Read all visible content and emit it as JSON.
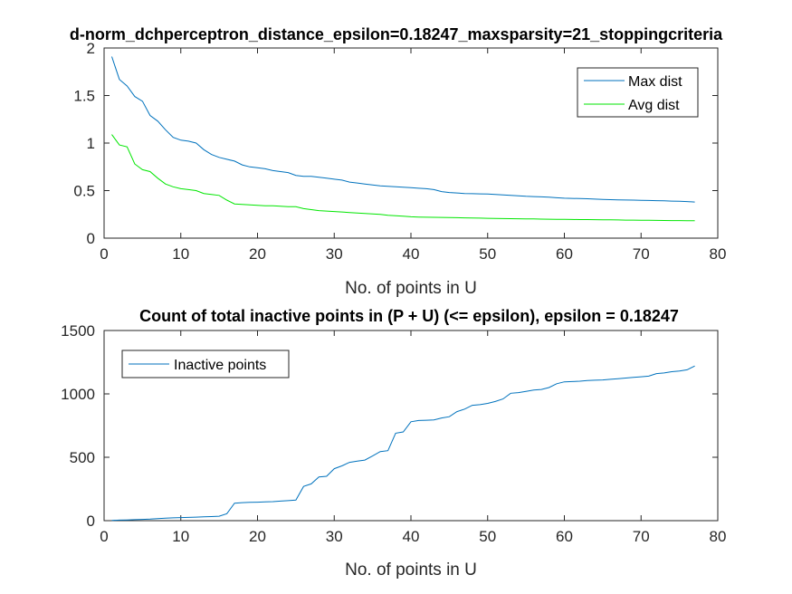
{
  "chart_data": [
    {
      "type": "line",
      "title": "d-norm_dchperceptron_distance_epsilon=0.18247_maxsparsity=21_stoppingcriteria",
      "xlabel": "No. of points in U",
      "ylabel": "",
      "xlim": [
        0,
        80
      ],
      "ylim": [
        0,
        2
      ],
      "xticks": [
        "0",
        "10",
        "20",
        "30",
        "40",
        "50",
        "60",
        "70",
        "80"
      ],
      "yticks": [
        "0",
        "0.5",
        "1",
        "1.5",
        "2"
      ],
      "legend_position": "top-right",
      "grid": false,
      "x": [
        1,
        2,
        3,
        4,
        5,
        6,
        7,
        8,
        9,
        10,
        11,
        12,
        13,
        14,
        15,
        16,
        17,
        18,
        19,
        20,
        21,
        22,
        23,
        24,
        25,
        26,
        27,
        28,
        29,
        30,
        31,
        32,
        33,
        34,
        35,
        36,
        37,
        38,
        39,
        40,
        41,
        42,
        43,
        44,
        45,
        46,
        47,
        48,
        49,
        50,
        51,
        52,
        53,
        54,
        55,
        56,
        57,
        58,
        59,
        60,
        61,
        62,
        63,
        64,
        65,
        66,
        67,
        68,
        69,
        70,
        71,
        72,
        73,
        74,
        75,
        76,
        77
      ],
      "series": [
        {
          "name": "Max dist",
          "color": "#0072BD",
          "values": [
            1.91,
            1.67,
            1.6,
            1.49,
            1.44,
            1.29,
            1.23,
            1.14,
            1.06,
            1.03,
            1.02,
            1.0,
            0.93,
            0.88,
            0.85,
            0.83,
            0.81,
            0.77,
            0.75,
            0.74,
            0.73,
            0.71,
            0.7,
            0.69,
            0.66,
            0.65,
            0.65,
            0.64,
            0.63,
            0.62,
            0.61,
            0.59,
            0.58,
            0.57,
            0.56,
            0.55,
            0.545,
            0.54,
            0.535,
            0.53,
            0.525,
            0.52,
            0.51,
            0.49,
            0.48,
            0.475,
            0.47,
            0.468,
            0.466,
            0.464,
            0.46,
            0.455,
            0.45,
            0.445,
            0.44,
            0.437,
            0.434,
            0.43,
            0.425,
            0.42,
            0.418,
            0.416,
            0.414,
            0.41,
            0.408,
            0.405,
            0.403,
            0.401,
            0.4,
            0.398,
            0.396,
            0.394,
            0.392,
            0.39,
            0.388,
            0.385,
            0.38
          ]
        },
        {
          "name": "Avg dist",
          "color": "#00E600",
          "values": [
            1.09,
            0.98,
            0.96,
            0.78,
            0.72,
            0.7,
            0.63,
            0.57,
            0.54,
            0.52,
            0.51,
            0.5,
            0.47,
            0.46,
            0.45,
            0.4,
            0.36,
            0.355,
            0.35,
            0.345,
            0.34,
            0.34,
            0.335,
            0.33,
            0.33,
            0.31,
            0.3,
            0.29,
            0.285,
            0.28,
            0.275,
            0.27,
            0.265,
            0.26,
            0.255,
            0.25,
            0.24,
            0.235,
            0.23,
            0.225,
            0.222,
            0.22,
            0.219,
            0.218,
            0.217,
            0.215,
            0.213,
            0.211,
            0.21,
            0.209,
            0.208,
            0.206,
            0.205,
            0.204,
            0.203,
            0.202,
            0.2,
            0.199,
            0.198,
            0.197,
            0.196,
            0.195,
            0.195,
            0.194,
            0.193,
            0.192,
            0.191,
            0.19,
            0.19,
            0.189,
            0.188,
            0.187,
            0.186,
            0.185,
            0.185,
            0.184,
            0.183
          ]
        }
      ]
    },
    {
      "type": "line",
      "title": "Count of total inactive points in (P + U) (<= epsilon), epsilon = 0.18247",
      "xlabel": "No. of points in U",
      "ylabel": "",
      "xlim": [
        0,
        80
      ],
      "ylim": [
        0,
        1500
      ],
      "xticks": [
        "0",
        "10",
        "20",
        "30",
        "40",
        "50",
        "60",
        "70",
        "80"
      ],
      "yticks": [
        "0",
        "500",
        "1000",
        "1500"
      ],
      "legend_position": "top-left",
      "grid": false,
      "x": [
        1,
        2,
        3,
        4,
        5,
        6,
        7,
        8,
        9,
        10,
        11,
        12,
        13,
        14,
        15,
        16,
        17,
        18,
        19,
        20,
        21,
        22,
        23,
        24,
        25,
        26,
        27,
        28,
        29,
        30,
        31,
        32,
        33,
        34,
        35,
        36,
        37,
        38,
        39,
        40,
        41,
        42,
        43,
        44,
        45,
        46,
        47,
        48,
        49,
        50,
        51,
        52,
        53,
        54,
        55,
        56,
        57,
        58,
        59,
        60,
        61,
        62,
        63,
        64,
        65,
        66,
        67,
        68,
        69,
        70,
        71,
        72,
        73,
        74,
        75,
        76,
        77
      ],
      "series": [
        {
          "name": "Inactive points",
          "color": "#0072BD",
          "values": [
            2,
            4,
            6,
            8,
            10,
            12,
            16,
            20,
            22,
            24,
            26,
            28,
            30,
            32,
            35,
            55,
            138,
            142,
            144,
            146,
            148,
            150,
            154,
            158,
            162,
            270,
            290,
            345,
            350,
            410,
            432,
            460,
            470,
            478,
            510,
            545,
            552,
            690,
            700,
            780,
            790,
            792,
            795,
            810,
            820,
            860,
            880,
            910,
            915,
            925,
            940,
            960,
            1005,
            1010,
            1020,
            1030,
            1035,
            1050,
            1080,
            1095,
            1097,
            1100,
            1105,
            1108,
            1110,
            1115,
            1120,
            1125,
            1130,
            1135,
            1140,
            1160,
            1165,
            1175,
            1180,
            1190,
            1220
          ]
        }
      ]
    }
  ]
}
